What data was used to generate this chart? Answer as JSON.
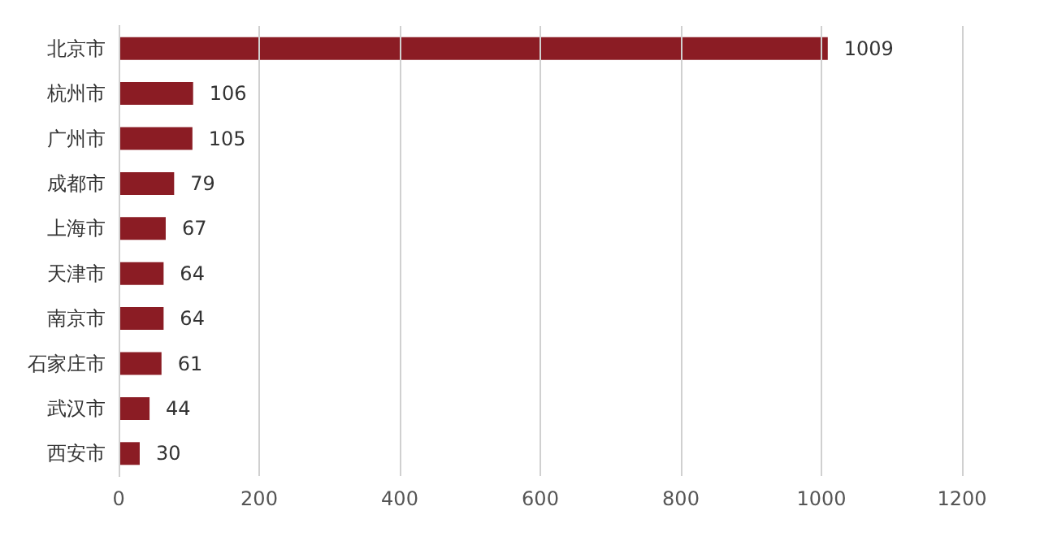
{
  "chart_data": {
    "type": "bar",
    "orientation": "horizontal",
    "categories": [
      "北京市",
      "杭州市",
      "广州市",
      "成都市",
      "上海市",
      "天津市",
      "南京市",
      "石家庄市",
      "武汉市",
      "西安市"
    ],
    "values": [
      1009,
      106,
      105,
      79,
      67,
      64,
      64,
      61,
      44,
      30
    ],
    "color": "#8b1c24",
    "xlim": [
      0,
      1200
    ],
    "xticks": [
      0,
      200,
      400,
      600,
      800,
      1000,
      1200
    ],
    "grid": "x",
    "data_labels": true
  }
}
